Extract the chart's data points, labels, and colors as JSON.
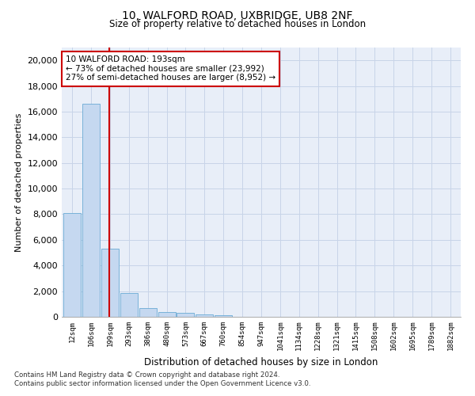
{
  "title1": "10, WALFORD ROAD, UXBRIDGE, UB8 2NF",
  "title2": "Size of property relative to detached houses in London",
  "xlabel": "Distribution of detached houses by size in London",
  "ylabel": "Number of detached properties",
  "categories": [
    "12sqm",
    "106sqm",
    "199sqm",
    "293sqm",
    "386sqm",
    "480sqm",
    "573sqm",
    "667sqm",
    "760sqm",
    "854sqm",
    "947sqm",
    "1041sqm",
    "1134sqm",
    "1228sqm",
    "1321sqm",
    "1415sqm",
    "1508sqm",
    "1602sqm",
    "1695sqm",
    "1789sqm",
    "1882sqm"
  ],
  "values": [
    8100,
    16600,
    5300,
    1850,
    700,
    370,
    280,
    200,
    150,
    0,
    0,
    0,
    0,
    0,
    0,
    0,
    0,
    0,
    0,
    0,
    0
  ],
  "bar_color": "#c5d8f0",
  "bar_edge_color": "#6aaad4",
  "vline_x": 1.95,
  "annotation_line1": "10 WALFORD ROAD: 193sqm",
  "annotation_line2": "← 73% of detached houses are smaller (23,992)",
  "annotation_line3": "27% of semi-detached houses are larger (8,952) →",
  "annotation_box_color": "#ffffff",
  "annotation_box_edge": "#cc0000",
  "vline_color": "#cc0000",
  "grid_color": "#c8d4e8",
  "background_color": "#e8eef8",
  "ylim": [
    0,
    21000
  ],
  "yticks": [
    0,
    2000,
    4000,
    6000,
    8000,
    10000,
    12000,
    14000,
    16000,
    18000,
    20000
  ],
  "footnote1": "Contains HM Land Registry data © Crown copyright and database right 2024.",
  "footnote2": "Contains public sector information licensed under the Open Government Licence v3.0."
}
